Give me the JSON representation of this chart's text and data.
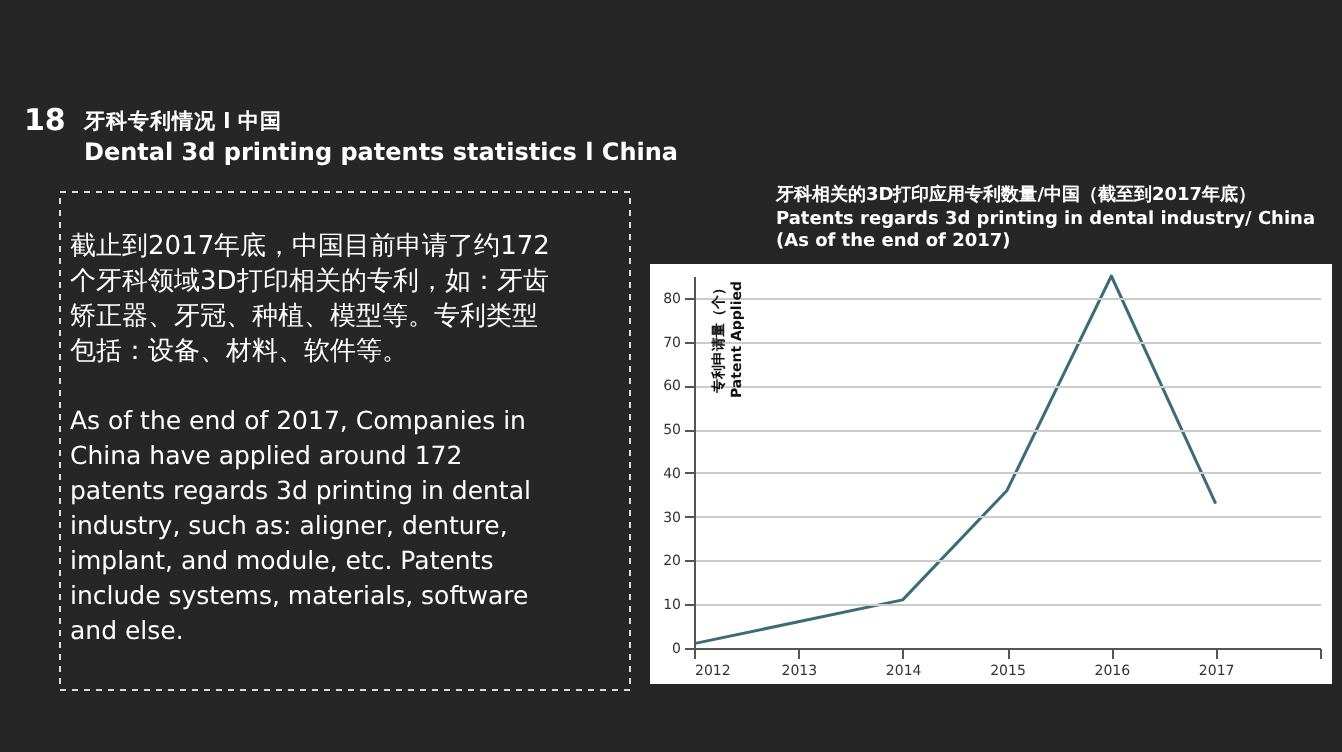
{
  "chart_data": {
    "type": "line",
    "title": "牙科相关的3D打印应用专利数量/中国（截至到2017年底）",
    "subtitle": "Patents regards 3d printing in dental industry/ China\n(As of the end of 2017)",
    "ylabel": "专利申请量（个）\nPatent Applied",
    "x": [
      2012,
      2014,
      2015,
      2016,
      2017
    ],
    "series": [
      {
        "color": "#3d6b7a",
        "values": [
          1,
          11,
          36,
          85,
          33
        ]
      }
    ],
    "xlim": [
      2012,
      2018
    ],
    "xticks": [
      2012,
      2013,
      2014,
      2015,
      2016,
      2017,
      {
        "value": 2018,
        "label": null
      }
    ],
    "ylim": [
      0,
      85
    ],
    "yticks": [
      0,
      10,
      20,
      30,
      40,
      50,
      60,
      70,
      80
    ],
    "grid": "y",
    "legend": false,
    "marker": "none",
    "line_style": "solid",
    "annotations": [
      "18",
      "牙科专利情况 l 中国",
      "Dental 3d printing patents statistics l China",
      "截止到2017年底，中国目前申请了约172个牙科领域3D打印相关的专利，如：牙齿矫正器、牙冠、种植、模型等。专利类型包括：设备、材料、软件等。",
      "As of the end of 2017, Companies in\nChina have applied around 172\npatents regards 3d printing in dental\nindustry, such as: aligner, denture,\nimplant, and module, etc. Patents\ninclude systems, materials, software\nand else."
    ]
  }
}
